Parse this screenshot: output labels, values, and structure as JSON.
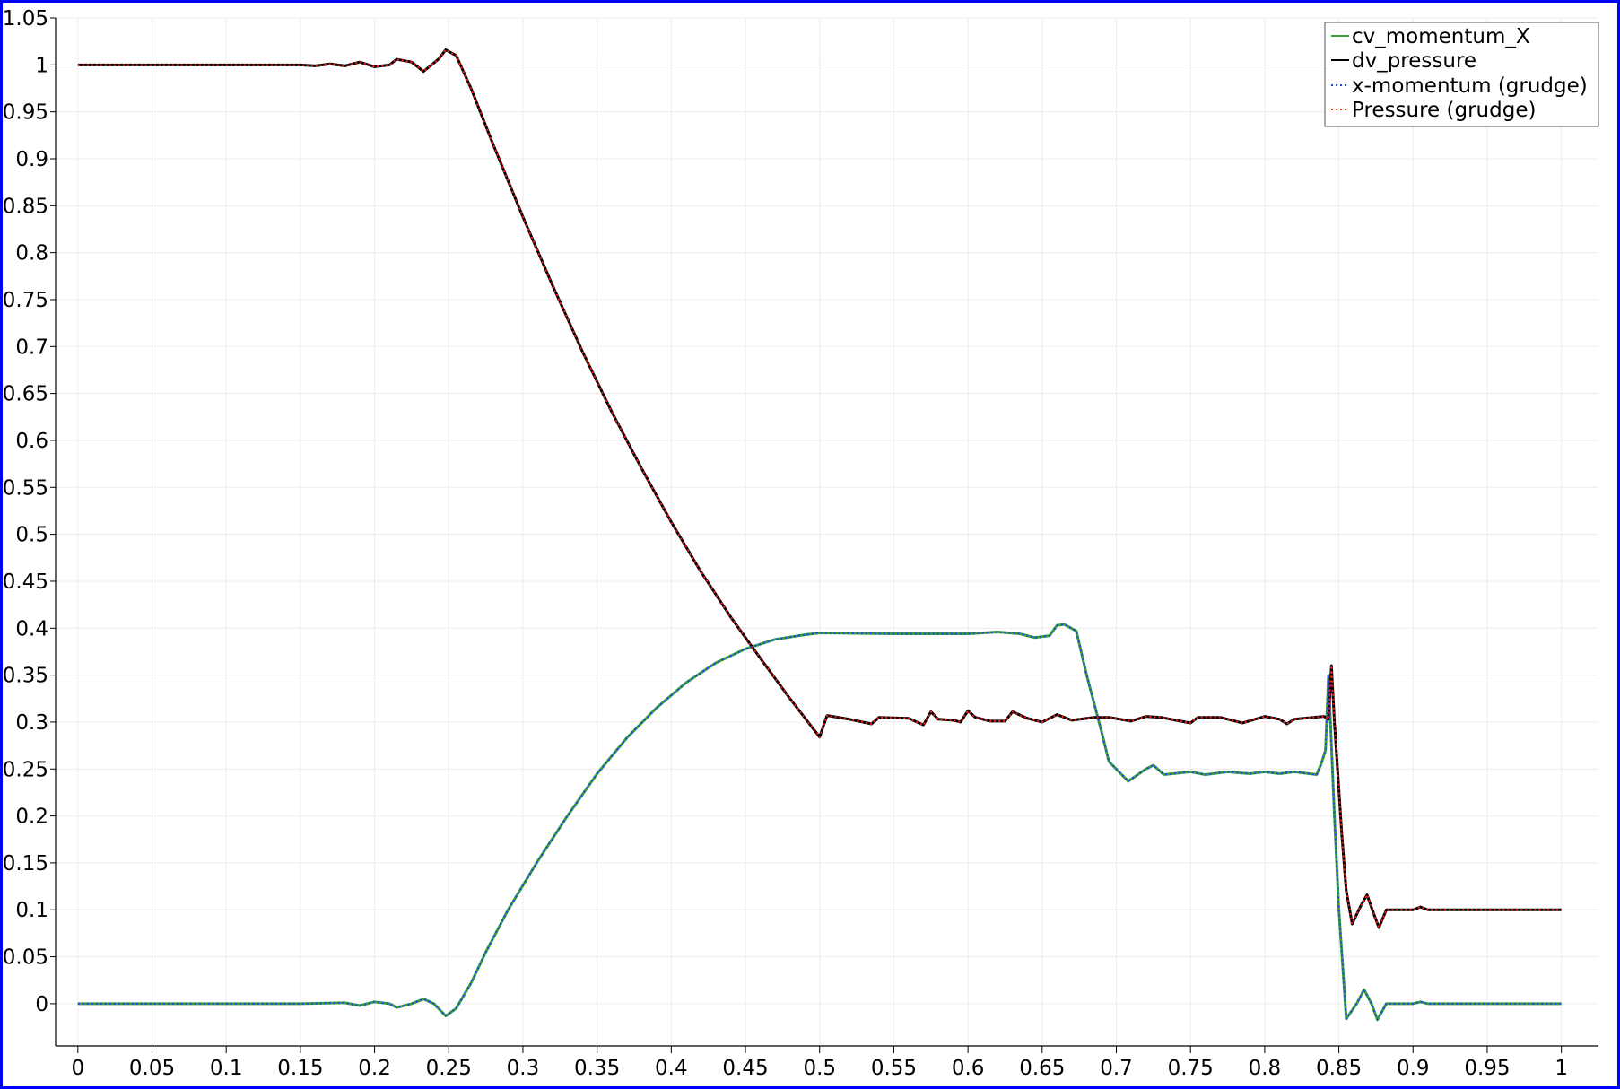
{
  "chart_data": {
    "type": "line",
    "title": "",
    "xlabel": "",
    "ylabel": "",
    "xlim": [
      -0.015,
      1.025
    ],
    "ylim": [
      -0.045,
      1.05
    ],
    "xticks": [
      "0",
      "0.05",
      "0.1",
      "0.15",
      "0.2",
      "0.25",
      "0.3",
      "0.35",
      "0.4",
      "0.45",
      "0.5",
      "0.55",
      "0.6",
      "0.65",
      "0.7",
      "0.75",
      "0.8",
      "0.85",
      "0.9",
      "0.95",
      "1"
    ],
    "yticks": [
      "0",
      "0.05",
      "0.1",
      "0.15",
      "0.2",
      "0.25",
      "0.3",
      "0.35",
      "0.4",
      "0.45",
      "0.5",
      "0.55",
      "0.6",
      "0.65",
      "0.7",
      "0.75",
      "0.8",
      "0.85",
      "0.9",
      "0.95",
      "1",
      "1.05"
    ],
    "grid": true,
    "legend": "top-right",
    "colors": {
      "cv_momentum_X": "#3a9f3a",
      "dv_pressure": "#000000",
      "x_momentum_grudge": "#1f3fff",
      "pressure_grudge": "#ff1a1a",
      "frame": "#0000ff"
    },
    "series": [
      {
        "name": "cv_momentum_X",
        "style": "solid",
        "color": "#3a9f3a",
        "points": [
          [
            0,
            0
          ],
          [
            0.1,
            0
          ],
          [
            0.15,
            0
          ],
          [
            0.18,
            0.001
          ],
          [
            0.19,
            -0.002
          ],
          [
            0.2,
            0.002
          ],
          [
            0.21,
            0
          ],
          [
            0.215,
            -0.004
          ],
          [
            0.225,
            0
          ],
          [
            0.233,
            0.005
          ],
          [
            0.24,
            0
          ],
          [
            0.248,
            -0.013
          ],
          [
            0.255,
            -0.005
          ],
          [
            0.265,
            0.022
          ],
          [
            0.275,
            0.055
          ],
          [
            0.29,
            0.1
          ],
          [
            0.31,
            0.152
          ],
          [
            0.33,
            0.2
          ],
          [
            0.35,
            0.245
          ],
          [
            0.37,
            0.283
          ],
          [
            0.39,
            0.315
          ],
          [
            0.41,
            0.342
          ],
          [
            0.43,
            0.363
          ],
          [
            0.45,
            0.378
          ],
          [
            0.47,
            0.388
          ],
          [
            0.49,
            0.393
          ],
          [
            0.5,
            0.395
          ],
          [
            0.55,
            0.394
          ],
          [
            0.6,
            0.394
          ],
          [
            0.62,
            0.396
          ],
          [
            0.635,
            0.394
          ],
          [
            0.645,
            0.39
          ],
          [
            0.655,
            0.392
          ],
          [
            0.66,
            0.403
          ],
          [
            0.665,
            0.404
          ],
          [
            0.673,
            0.397
          ],
          [
            0.68,
            0.35
          ],
          [
            0.69,
            0.29
          ],
          [
            0.695,
            0.258
          ],
          [
            0.708,
            0.237
          ],
          [
            0.72,
            0.25
          ],
          [
            0.725,
            0.254
          ],
          [
            0.732,
            0.244
          ],
          [
            0.75,
            0.247
          ],
          [
            0.76,
            0.244
          ],
          [
            0.775,
            0.247
          ],
          [
            0.79,
            0.245
          ],
          [
            0.8,
            0.247
          ],
          [
            0.81,
            0.245
          ],
          [
            0.82,
            0.247
          ],
          [
            0.835,
            0.244
          ],
          [
            0.838,
            0.255
          ],
          [
            0.841,
            0.27
          ],
          [
            0.843,
            0.35
          ],
          [
            0.847,
            0.2
          ],
          [
            0.85,
            0.1
          ],
          [
            0.855,
            -0.016
          ],
          [
            0.862,
            0
          ],
          [
            0.867,
            0.015
          ],
          [
            0.872,
            0
          ],
          [
            0.876,
            -0.017
          ],
          [
            0.882,
            0
          ],
          [
            0.9,
            0
          ],
          [
            0.905,
            0.002
          ],
          [
            0.91,
            0
          ],
          [
            0.95,
            0
          ],
          [
            1,
            0
          ]
        ]
      },
      {
        "name": "dv_pressure",
        "style": "solid",
        "color": "#000000",
        "points": [
          [
            0,
            1
          ],
          [
            0.1,
            1
          ],
          [
            0.15,
            1
          ],
          [
            0.16,
            0.999
          ],
          [
            0.17,
            1.001
          ],
          [
            0.18,
            0.999
          ],
          [
            0.19,
            1.003
          ],
          [
            0.2,
            0.998
          ],
          [
            0.21,
            1
          ],
          [
            0.215,
            1.006
          ],
          [
            0.225,
            1.003
          ],
          [
            0.233,
            0.993
          ],
          [
            0.243,
            1.006
          ],
          [
            0.248,
            1.016
          ],
          [
            0.255,
            1.01
          ],
          [
            0.265,
            0.975
          ],
          [
            0.28,
            0.915
          ],
          [
            0.3,
            0.838
          ],
          [
            0.32,
            0.765
          ],
          [
            0.34,
            0.695
          ],
          [
            0.36,
            0.63
          ],
          [
            0.38,
            0.57
          ],
          [
            0.4,
            0.513
          ],
          [
            0.42,
            0.46
          ],
          [
            0.44,
            0.412
          ],
          [
            0.46,
            0.368
          ],
          [
            0.48,
            0.325
          ],
          [
            0.5,
            0.284
          ],
          [
            0.505,
            0.307
          ],
          [
            0.52,
            0.303
          ],
          [
            0.535,
            0.298
          ],
          [
            0.54,
            0.305
          ],
          [
            0.56,
            0.304
          ],
          [
            0.57,
            0.297
          ],
          [
            0.575,
            0.311
          ],
          [
            0.58,
            0.303
          ],
          [
            0.59,
            0.302
          ],
          [
            0.595,
            0.3
          ],
          [
            0.6,
            0.312
          ],
          [
            0.605,
            0.305
          ],
          [
            0.615,
            0.301
          ],
          [
            0.625,
            0.301
          ],
          [
            0.63,
            0.311
          ],
          [
            0.64,
            0.304
          ],
          [
            0.65,
            0.3
          ],
          [
            0.66,
            0.308
          ],
          [
            0.67,
            0.302
          ],
          [
            0.685,
            0.305
          ],
          [
            0.695,
            0.305
          ],
          [
            0.71,
            0.301
          ],
          [
            0.72,
            0.306
          ],
          [
            0.73,
            0.305
          ],
          [
            0.74,
            0.302
          ],
          [
            0.75,
            0.299
          ],
          [
            0.755,
            0.305
          ],
          [
            0.77,
            0.305
          ],
          [
            0.785,
            0.299
          ],
          [
            0.8,
            0.306
          ],
          [
            0.81,
            0.303
          ],
          [
            0.815,
            0.298
          ],
          [
            0.82,
            0.303
          ],
          [
            0.84,
            0.306
          ],
          [
            0.843,
            0.303
          ],
          [
            0.845,
            0.36
          ],
          [
            0.847,
            0.3
          ],
          [
            0.852,
            0.18
          ],
          [
            0.855,
            0.12
          ],
          [
            0.859,
            0.085
          ],
          [
            0.865,
            0.105
          ],
          [
            0.869,
            0.116
          ],
          [
            0.873,
            0.098
          ],
          [
            0.877,
            0.081
          ],
          [
            0.882,
            0.1
          ],
          [
            0.9,
            0.1
          ],
          [
            0.905,
            0.103
          ],
          [
            0.91,
            0.1
          ],
          [
            0.95,
            0.1
          ],
          [
            1,
            0.1
          ]
        ]
      },
      {
        "name": "x-momentum (grudge)",
        "style": "dotted",
        "color": "#1f3fff",
        "same_as": "cv_momentum_X"
      },
      {
        "name": "Pressure (grudge)",
        "style": "dotted",
        "color": "#ff1a1a",
        "same_as": "dv_pressure"
      }
    ]
  }
}
